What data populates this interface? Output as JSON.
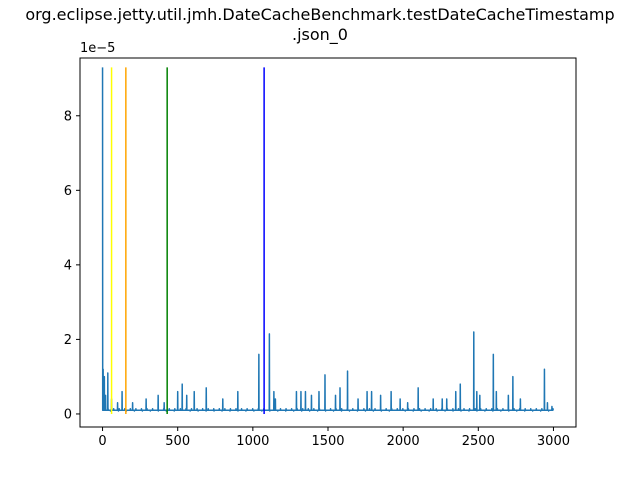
{
  "chart_data": {
    "type": "line",
    "title_lines": [
      "org.eclipse.jetty.util.jmh.DateCacheBenchmark.testDateCacheTimestamp",
      ".json_0"
    ],
    "xlabel": "",
    "ylabel": "",
    "y_offset_text": "1e−5",
    "xlim": [
      -150,
      3150
    ],
    "ylim": [
      -0.35,
      9.55
    ],
    "x_ticks": [
      0,
      500,
      1000,
      1500,
      2000,
      2500,
      3000
    ],
    "x_tick_labels": [
      "0",
      "500",
      "1000",
      "1500",
      "2000",
      "2500",
      "3000"
    ],
    "y_ticks": [
      0,
      2,
      4,
      6,
      8
    ],
    "y_tick_labels": [
      "0",
      "2",
      "4",
      "6",
      "8"
    ],
    "grid": false,
    "series": [
      {
        "color": "#1f77b4",
        "baseline": 0.1,
        "n_points": 3000,
        "spikes": [
          [
            0,
            9.3
          ],
          [
            4,
            1.2
          ],
          [
            12,
            1.0
          ],
          [
            20,
            0.5
          ],
          [
            35,
            1.1
          ],
          [
            60,
            0.4
          ],
          [
            100,
            0.3
          ],
          [
            130,
            0.6
          ],
          [
            200,
            0.3
          ],
          [
            290,
            0.4
          ],
          [
            370,
            0.5
          ],
          [
            410,
            0.3
          ],
          [
            500,
            0.6
          ],
          [
            530,
            0.8
          ],
          [
            560,
            0.5
          ],
          [
            610,
            0.6
          ],
          [
            690,
            0.7
          ],
          [
            800,
            0.4
          ],
          [
            900,
            0.6
          ],
          [
            1040,
            1.6
          ],
          [
            1110,
            2.15
          ],
          [
            1140,
            0.6
          ],
          [
            1150,
            0.4
          ],
          [
            1290,
            0.6
          ],
          [
            1320,
            0.6
          ],
          [
            1350,
            0.6
          ],
          [
            1390,
            0.5
          ],
          [
            1440,
            0.6
          ],
          [
            1480,
            1.05
          ],
          [
            1550,
            0.5
          ],
          [
            1580,
            0.7
          ],
          [
            1630,
            1.15
          ],
          [
            1700,
            0.4
          ],
          [
            1760,
            0.6
          ],
          [
            1790,
            0.6
          ],
          [
            1850,
            0.5
          ],
          [
            1920,
            0.6
          ],
          [
            1980,
            0.4
          ],
          [
            2030,
            0.3
          ],
          [
            2100,
            0.7
          ],
          [
            2200,
            0.4
          ],
          [
            2260,
            0.4
          ],
          [
            2290,
            0.4
          ],
          [
            2350,
            0.6
          ],
          [
            2380,
            0.8
          ],
          [
            2470,
            2.2
          ],
          [
            2490,
            0.6
          ],
          [
            2510,
            0.5
          ],
          [
            2600,
            1.6
          ],
          [
            2620,
            0.6
          ],
          [
            2700,
            0.5
          ],
          [
            2730,
            1.0
          ],
          [
            2780,
            0.4
          ],
          [
            2940,
            1.2
          ],
          [
            2960,
            0.3
          ],
          [
            2990,
            0.2
          ]
        ]
      }
    ],
    "vertical_lines": [
      {
        "x": 60,
        "color": "#ffff00"
      },
      {
        "x": 155,
        "color": "#ffa500"
      },
      {
        "x": 430,
        "color": "#008000"
      },
      {
        "x": 1075,
        "color": "#0000ff"
      }
    ],
    "vertical_line_top": 9.3
  }
}
